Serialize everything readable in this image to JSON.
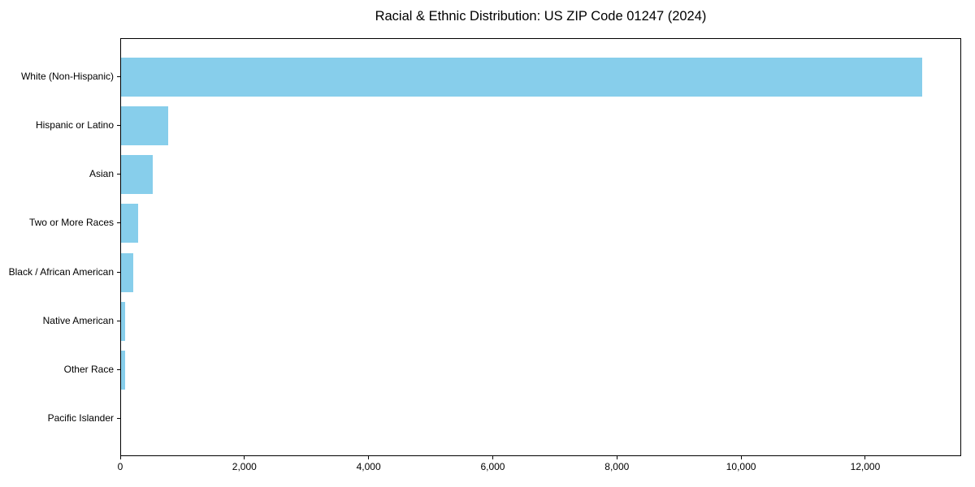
{
  "title": "Racial & Ethnic Distribution: US ZIP Code 01247 (2024)",
  "chart_data": {
    "type": "bar",
    "orientation": "horizontal",
    "title": "Racial & Ethnic Distribution: US ZIP Code 01247 (2024)",
    "xlabel": "",
    "ylabel": "",
    "categories": [
      "White (Non-Hispanic)",
      "Hispanic or Latino",
      "Asian",
      "Two or More Races",
      "Black / African American",
      "Native American",
      "Other Race",
      "Pacific Islander"
    ],
    "values": [
      12900,
      760,
      515,
      270,
      200,
      70,
      60,
      0
    ],
    "bar_color": "#87CEEB",
    "xlim": [
      0,
      13545
    ],
    "x_ticks": [
      0,
      2000,
      4000,
      6000,
      8000,
      10000,
      12000
    ],
    "x_tick_labels": [
      "0",
      "2,000",
      "4,000",
      "6,000",
      "8,000",
      "10,000",
      "12,000"
    ],
    "grid": false,
    "legend_position": "none",
    "background_color": "#ffffff",
    "frame_color": "#000000"
  }
}
